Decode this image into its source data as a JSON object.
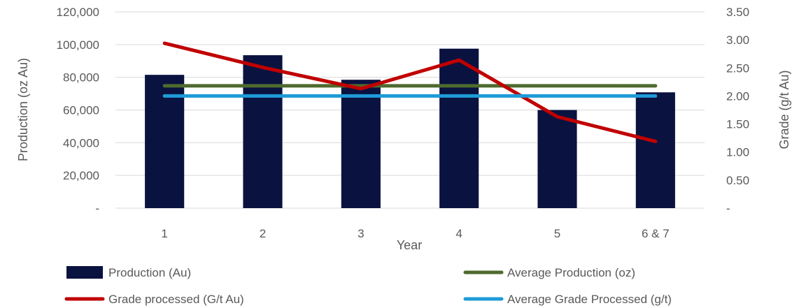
{
  "chart_data": {
    "type": "bar",
    "categories": [
      "1",
      "2",
      "3",
      "4",
      "5",
      "6 & 7"
    ],
    "xlabel": "Year",
    "ylabel": "Production (oz Au)",
    "y2label": "Grade (g/t Au)",
    "ylim": [
      0,
      120000
    ],
    "y2lim": [
      0,
      3.5
    ],
    "yticks": [
      "-",
      "20,000",
      "40,000",
      "60,000",
      "80,000",
      "100,000",
      "120,000"
    ],
    "y2ticks": [
      "-",
      "0.50",
      "1.00",
      "1.50",
      "2.00",
      "2.50",
      "3.00",
      "3.50"
    ],
    "grid": true,
    "legend_position": "bottom",
    "series": [
      {
        "name": "Production (Au)",
        "kind": "bar",
        "axis": "left",
        "color": "#0a1240",
        "values": [
          81500,
          93500,
          78500,
          97500,
          60000,
          70800
        ]
      },
      {
        "name": "Average Production (oz)",
        "kind": "line",
        "axis": "left",
        "color": "#4e6b2e",
        "values": [
          74800,
          74800,
          74800,
          74800,
          74800,
          74800
        ]
      },
      {
        "name": "Grade processed (G/t Au)",
        "kind": "line",
        "axis": "right",
        "color": "#c00000",
        "values": [
          2.94,
          2.51,
          2.13,
          2.64,
          1.63,
          1.19
        ]
      },
      {
        "name": "Average Grade Processed (g/t)",
        "kind": "line",
        "axis": "right",
        "color": "#1e9bd7",
        "values": [
          2.0,
          2.0,
          2.0,
          2.0,
          2.0,
          2.0
        ]
      }
    ]
  }
}
